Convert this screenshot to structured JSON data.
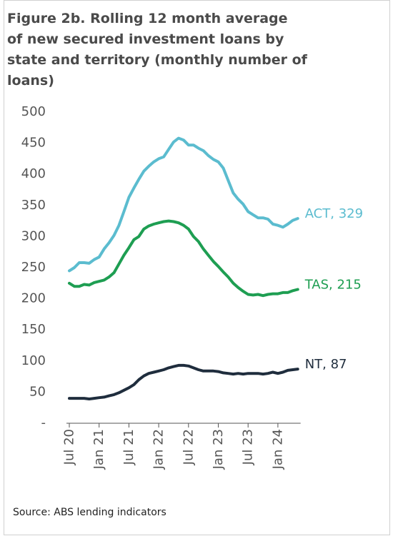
{
  "chart_data": {
    "type": "line",
    "title": "Figure 2b. Rolling 12 month average of new secured investment loans by state and territory (monthly number of loans)",
    "source": "Source: ABS lending indicators",
    "categories": [
      "Jul 20",
      null,
      null,
      null,
      null,
      null,
      "Jan 21",
      null,
      null,
      null,
      null,
      null,
      "Jul 21",
      null,
      null,
      null,
      null,
      null,
      "Jan 22",
      null,
      null,
      null,
      null,
      null,
      "Jul 22",
      null,
      null,
      null,
      null,
      null,
      "Jan 23",
      null,
      null,
      null,
      null,
      null,
      "Jul 23",
      null,
      null,
      null,
      null,
      null,
      "Jan 24",
      null,
      null,
      null,
      null
    ],
    "series": [
      {
        "name": "ACT",
        "end_label": "ACT, 329",
        "color": "#5bbccf",
        "values": [
          245,
          250,
          258,
          258,
          257,
          263,
          267,
          280,
          290,
          302,
          318,
          340,
          363,
          378,
          392,
          405,
          413,
          420,
          425,
          428,
          440,
          452,
          458,
          455,
          447,
          447,
          442,
          438,
          430,
          424,
          420,
          410,
          390,
          370,
          360,
          352,
          340,
          335,
          330,
          330,
          328,
          320,
          318,
          315,
          320,
          326,
          329
        ]
      },
      {
        "name": "TAS",
        "end_label": "TAS, 215",
        "color": "#1e9e52",
        "values": [
          225,
          220,
          220,
          223,
          222,
          226,
          228,
          230,
          235,
          242,
          256,
          270,
          282,
          295,
          300,
          312,
          317,
          320,
          322,
          324,
          325,
          324,
          322,
          318,
          312,
          300,
          292,
          280,
          270,
          260,
          252,
          243,
          235,
          225,
          218,
          212,
          207,
          206,
          207,
          205,
          207,
          208,
          208,
          210,
          210,
          213,
          215
        ]
      },
      {
        "name": "NT",
        "end_label": "NT, 87",
        "color": "#1f2d3d",
        "values": [
          40,
          40,
          40,
          40,
          39,
          40,
          41,
          42,
          44,
          46,
          49,
          53,
          57,
          62,
          70,
          76,
          80,
          82,
          84,
          86,
          89,
          91,
          93,
          93,
          92,
          89,
          86,
          84,
          84,
          84,
          83,
          81,
          80,
          79,
          80,
          79,
          80,
          80,
          80,
          79,
          80,
          82,
          80,
          82,
          85,
          86,
          87
        ]
      }
    ],
    "ylim": [
      0,
      500
    ],
    "yticks": [
      {
        "value": 0,
        "label": "-"
      },
      50,
      100,
      150,
      200,
      250,
      300,
      350,
      400,
      450,
      500
    ]
  }
}
